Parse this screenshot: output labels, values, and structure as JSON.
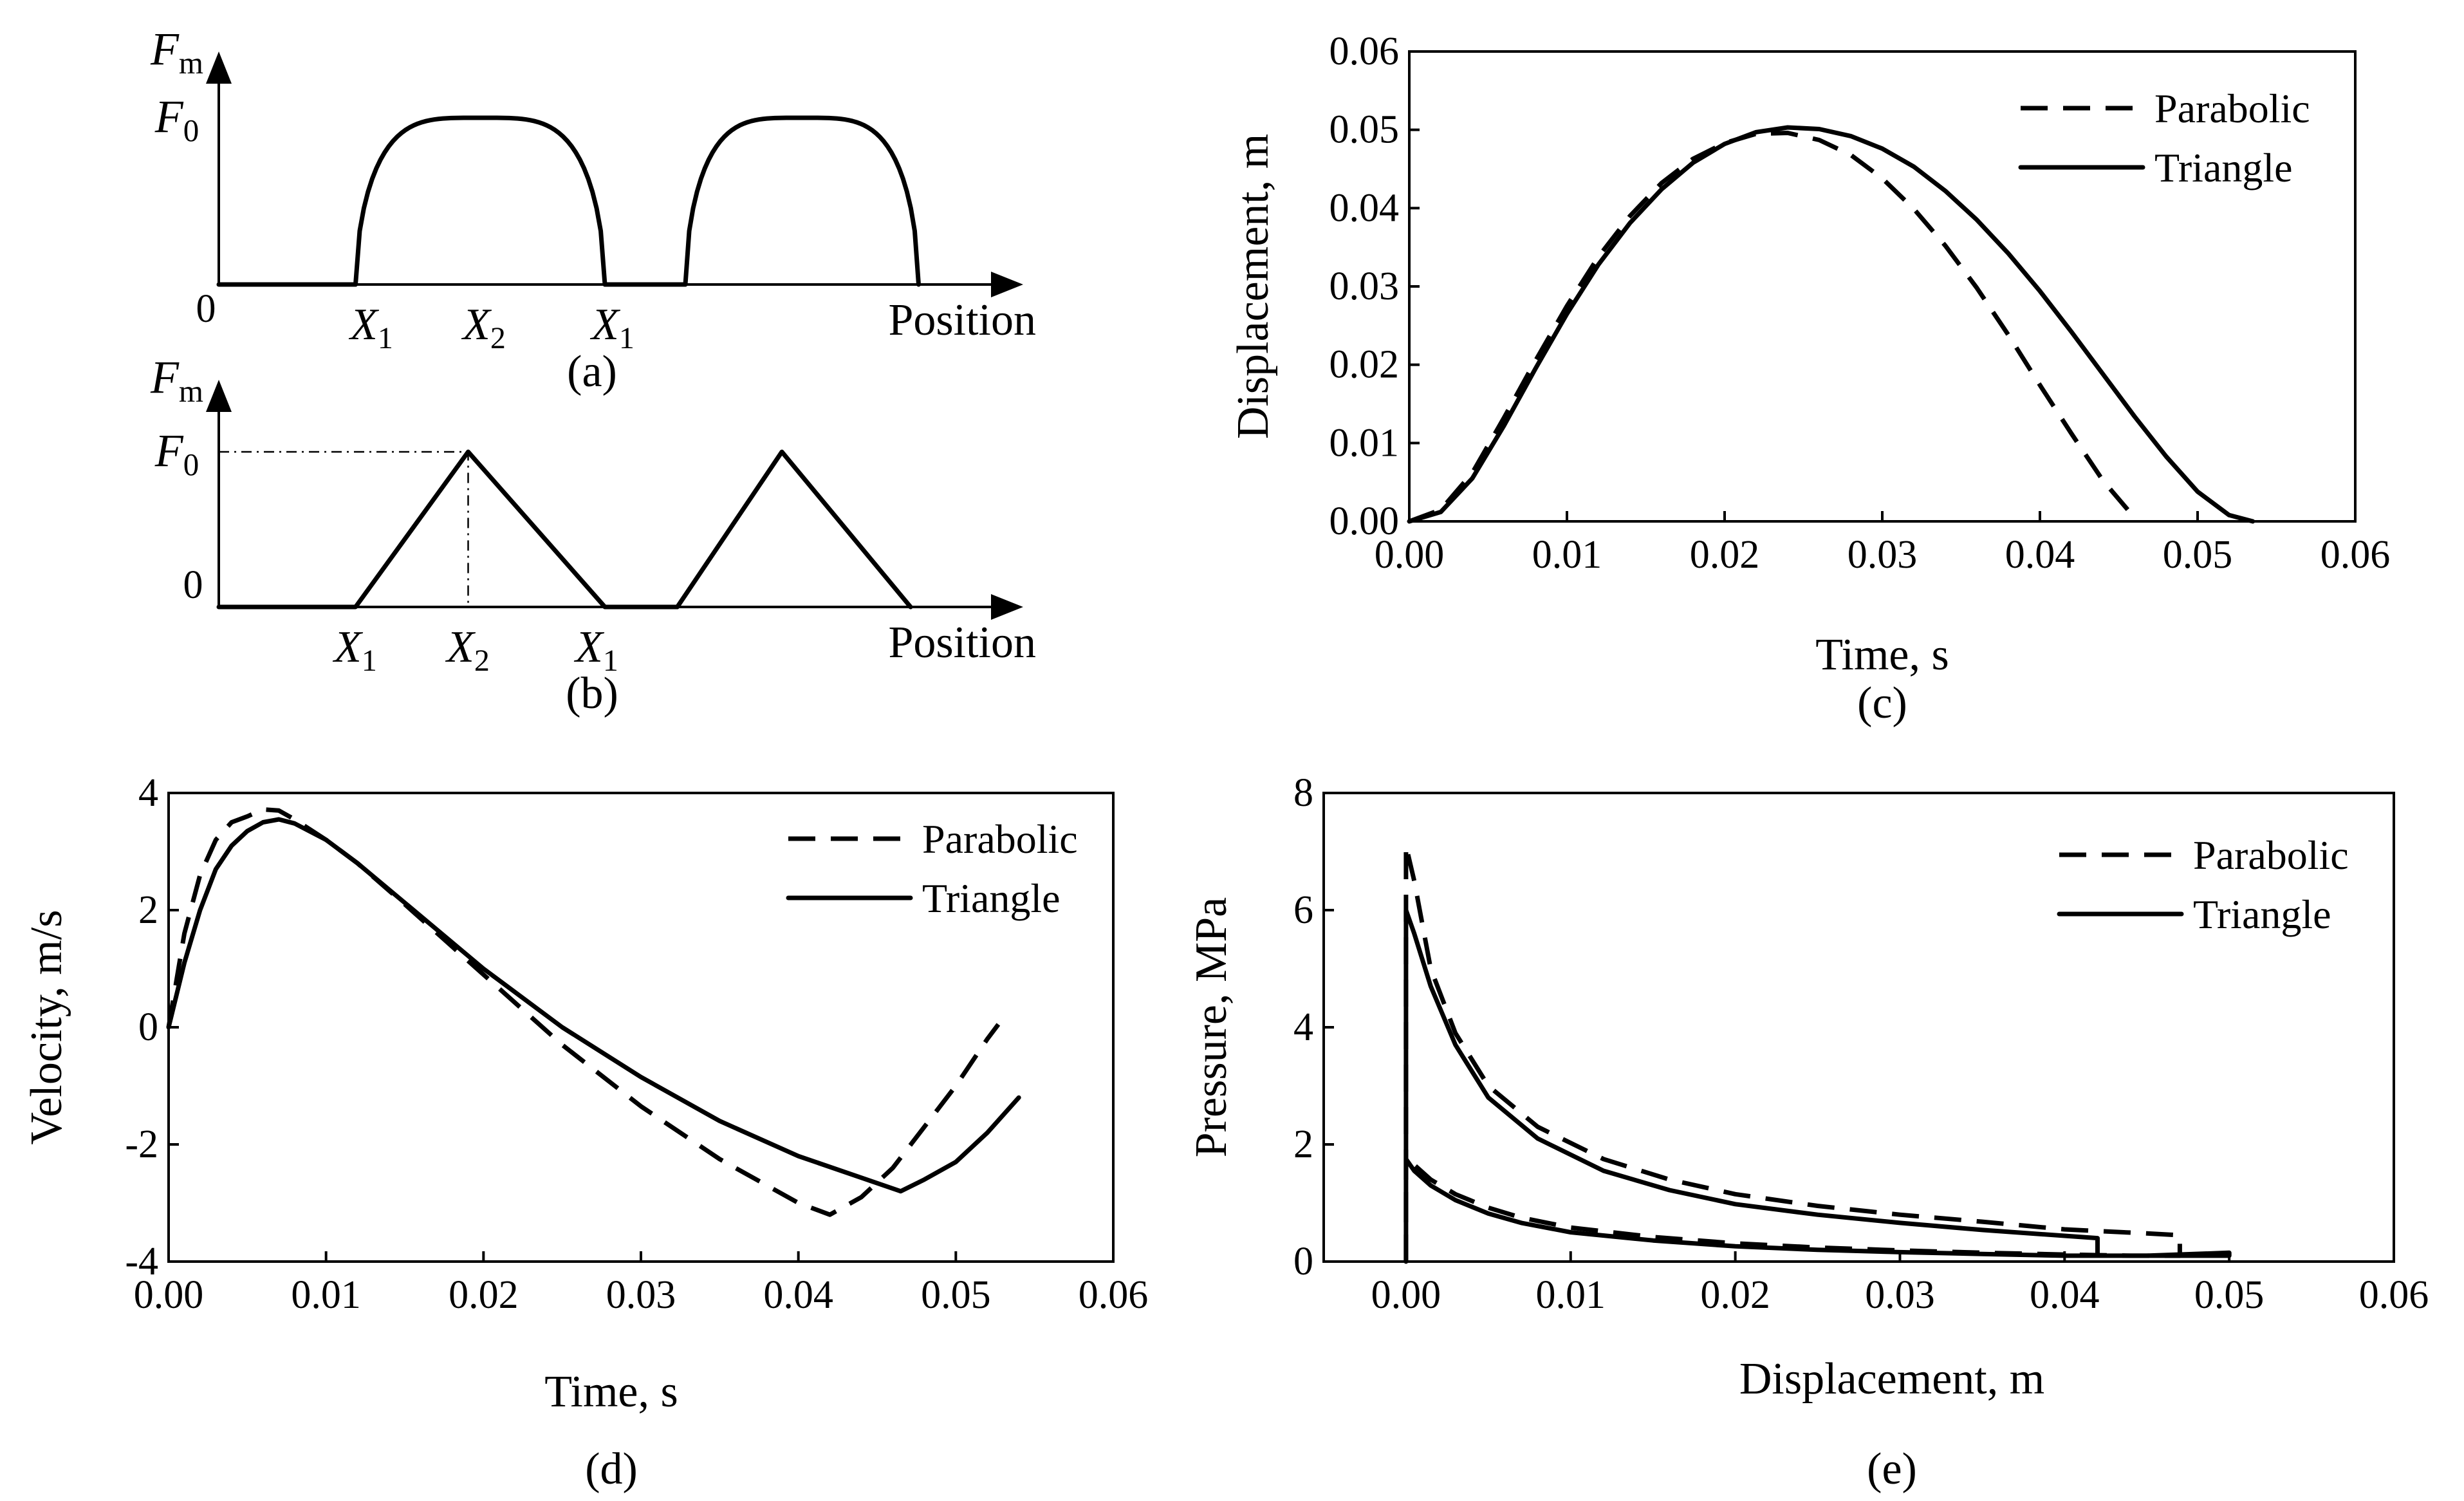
{
  "chart_data": [
    {
      "id": "a",
      "type": "line",
      "panel_label": "(a)",
      "xlabel": "Position",
      "ylabel_main": "F",
      "ylabel_sub": "m",
      "f0_main": "F",
      "f0_sub": "0",
      "origin_label": "0",
      "xticks": [
        {
          "pos": 0.19,
          "main": "X",
          "sub": "1"
        },
        {
          "pos": 0.33,
          "main": "X",
          "sub": "2"
        },
        {
          "pos": 0.49,
          "main": "X",
          "sub": "1"
        }
      ],
      "profile": "parabolic",
      "segments": [
        {
          "start": 0.17,
          "end": 0.48
        },
        {
          "start": 0.58,
          "end": 0.87
        }
      ]
    },
    {
      "id": "b",
      "type": "line",
      "panel_label": "(b)",
      "xlabel": "Position",
      "ylabel_main": "F",
      "ylabel_sub": "m",
      "f0_main": "F",
      "f0_sub": "0",
      "zero_label": "0",
      "xticks": [
        {
          "pos": 0.17,
          "main": "X",
          "sub": "1"
        },
        {
          "pos": 0.31,
          "main": "X",
          "sub": "2"
        },
        {
          "pos": 0.47,
          "main": "X",
          "sub": "1"
        }
      ],
      "profile": "triangle",
      "segments": [
        {
          "start": 0.17,
          "peak": 0.31,
          "end": 0.48
        },
        {
          "start": 0.57,
          "peak": 0.7,
          "end": 0.86
        }
      ]
    },
    {
      "id": "c",
      "type": "line",
      "panel_label": "(c)",
      "xlabel": "Time, s",
      "ylabel": "Displacement, m",
      "xlim": [
        0,
        0.06
      ],
      "ylim": [
        0,
        0.06
      ],
      "xticks": [
        "0.00",
        "0.01",
        "0.02",
        "0.03",
        "0.04",
        "0.05",
        "0.06"
      ],
      "yticks": [
        "0.00",
        "0.01",
        "0.02",
        "0.03",
        "0.04",
        "0.05",
        "0.06"
      ],
      "legend": [
        "Parabolic",
        "Triangle"
      ],
      "legend_position": "top-right",
      "series": [
        {
          "name": "Parabolic",
          "style": "dashed",
          "x": [
            0.0,
            0.002,
            0.004,
            0.006,
            0.008,
            0.01,
            0.012,
            0.014,
            0.016,
            0.018,
            0.02,
            0.022,
            0.024,
            0.026,
            0.028,
            0.03,
            0.032,
            0.034,
            0.036,
            0.038,
            0.04,
            0.042,
            0.044,
            0.0462
          ],
          "y": [
            0.0,
            0.0015,
            0.0062,
            0.0132,
            0.0205,
            0.0275,
            0.0338,
            0.039,
            0.0432,
            0.0463,
            0.0483,
            0.0495,
            0.0496,
            0.0487,
            0.0468,
            0.0438,
            0.0399,
            0.0352,
            0.0298,
            0.0238,
            0.0174,
            0.0112,
            0.0052,
            0.0
          ]
        },
        {
          "name": "Triangle",
          "style": "solid",
          "x": [
            0.0,
            0.002,
            0.004,
            0.006,
            0.008,
            0.01,
            0.012,
            0.014,
            0.016,
            0.018,
            0.02,
            0.022,
            0.024,
            0.026,
            0.028,
            0.03,
            0.032,
            0.034,
            0.036,
            0.038,
            0.04,
            0.042,
            0.044,
            0.046,
            0.048,
            0.05,
            0.052,
            0.0535
          ],
          "y": [
            0.0,
            0.0012,
            0.0055,
            0.0122,
            0.0195,
            0.0265,
            0.0328,
            0.0381,
            0.0424,
            0.0458,
            0.0482,
            0.0497,
            0.0503,
            0.0501,
            0.0492,
            0.0476,
            0.0453,
            0.0422,
            0.0385,
            0.0342,
            0.0294,
            0.0242,
            0.0188,
            0.0134,
            0.0083,
            0.0038,
            0.0008,
            0.0
          ]
        }
      ]
    },
    {
      "id": "d",
      "type": "line",
      "panel_label": "(d)",
      "xlabel": "Time, s",
      "ylabel": "Velocity, m/s",
      "xlim": [
        0,
        0.06
      ],
      "ylim": [
        -4,
        4
      ],
      "xticks": [
        "0.00",
        "0.01",
        "0.02",
        "0.03",
        "0.04",
        "0.05",
        "0.06"
      ],
      "yticks": [
        "-4",
        "-2",
        "0",
        "2",
        "4"
      ],
      "legend": [
        "Parabolic",
        "Triangle"
      ],
      "legend_position": "top-right",
      "series": [
        {
          "name": "Parabolic",
          "style": "dashed",
          "x": [
            0.0,
            0.001,
            0.002,
            0.003,
            0.004,
            0.005,
            0.006,
            0.007,
            0.008,
            0.01,
            0.012,
            0.015,
            0.02,
            0.025,
            0.03,
            0.035,
            0.04,
            0.042,
            0.044,
            0.046,
            0.048,
            0.05,
            0.052,
            0.0527
          ],
          "y": [
            0.0,
            1.6,
            2.6,
            3.2,
            3.5,
            3.6,
            3.72,
            3.7,
            3.55,
            3.2,
            2.8,
            2.1,
            0.9,
            -0.3,
            -1.35,
            -2.25,
            -3.0,
            -3.2,
            -2.9,
            -2.4,
            -1.7,
            -1.0,
            -0.2,
            0.05
          ]
        },
        {
          "name": "Triangle",
          "style": "solid",
          "x": [
            0.0,
            0.001,
            0.002,
            0.003,
            0.004,
            0.005,
            0.006,
            0.007,
            0.008,
            0.01,
            0.012,
            0.016,
            0.02,
            0.025,
            0.03,
            0.035,
            0.04,
            0.0465,
            0.048,
            0.05,
            0.052,
            0.054
          ],
          "y": [
            0.0,
            1.1,
            2.0,
            2.7,
            3.1,
            3.35,
            3.5,
            3.55,
            3.48,
            3.2,
            2.8,
            1.9,
            1.0,
            0.0,
            -0.85,
            -1.6,
            -2.2,
            -2.8,
            -2.6,
            -2.3,
            -1.8,
            -1.2
          ]
        }
      ]
    },
    {
      "id": "e",
      "type": "line",
      "panel_label": "(e)",
      "xlabel": "Displacement, m",
      "ylabel": "Pressure, MPa",
      "xlim": [
        -0.005,
        0.06
      ],
      "ylim": [
        0,
        8
      ],
      "xticks": [
        "0.00",
        "0.01",
        "0.02",
        "0.03",
        "0.04",
        "0.05",
        "0.06"
      ],
      "yticks": [
        "0",
        "2",
        "4",
        "6",
        "8"
      ],
      "legend": [
        "Parabolic",
        "Triangle"
      ],
      "legend_position": "top-right",
      "series": [
        {
          "name": "Parabolic",
          "style": "dashed",
          "x": [
            0.0,
            0.0,
            0.0005,
            0.0015,
            0.003,
            0.005,
            0.008,
            0.012,
            0.016,
            0.02,
            0.025,
            0.03,
            0.035,
            0.04,
            0.045,
            0.047,
            0.047,
            0.044,
            0.04,
            0.035,
            0.03,
            0.025,
            0.02,
            0.015,
            0.01,
            0.007,
            0.005,
            0.003,
            0.0015,
            0.0005,
            0.0,
            0.0
          ],
          "y": [
            0.0,
            7.1,
            6.5,
            5.0,
            3.9,
            3.0,
            2.3,
            1.75,
            1.4,
            1.15,
            0.95,
            0.8,
            0.68,
            0.55,
            0.48,
            0.45,
            0.1,
            0.1,
            0.12,
            0.15,
            0.19,
            0.24,
            0.31,
            0.42,
            0.58,
            0.75,
            0.92,
            1.15,
            1.4,
            1.65,
            1.85,
            0.0
          ]
        },
        {
          "name": "Triangle",
          "style": "solid",
          "x": [
            0.0,
            0.0,
            0.0005,
            0.0015,
            0.003,
            0.005,
            0.008,
            0.012,
            0.016,
            0.02,
            0.025,
            0.03,
            0.035,
            0.04,
            0.042,
            0.042,
            0.046,
            0.05,
            0.05,
            0.045,
            0.04,
            0.035,
            0.03,
            0.025,
            0.02,
            0.015,
            0.01,
            0.007,
            0.005,
            0.003,
            0.0015,
            0.0005,
            0.0,
            0.0
          ],
          "y": [
            0.0,
            6.0,
            5.6,
            4.7,
            3.7,
            2.8,
            2.1,
            1.55,
            1.22,
            0.98,
            0.8,
            0.66,
            0.54,
            0.44,
            0.4,
            0.1,
            0.1,
            0.1,
            0.15,
            0.1,
            0.1,
            0.13,
            0.16,
            0.2,
            0.26,
            0.36,
            0.5,
            0.66,
            0.82,
            1.05,
            1.3,
            1.55,
            1.75,
            0.0
          ]
        }
      ]
    }
  ]
}
